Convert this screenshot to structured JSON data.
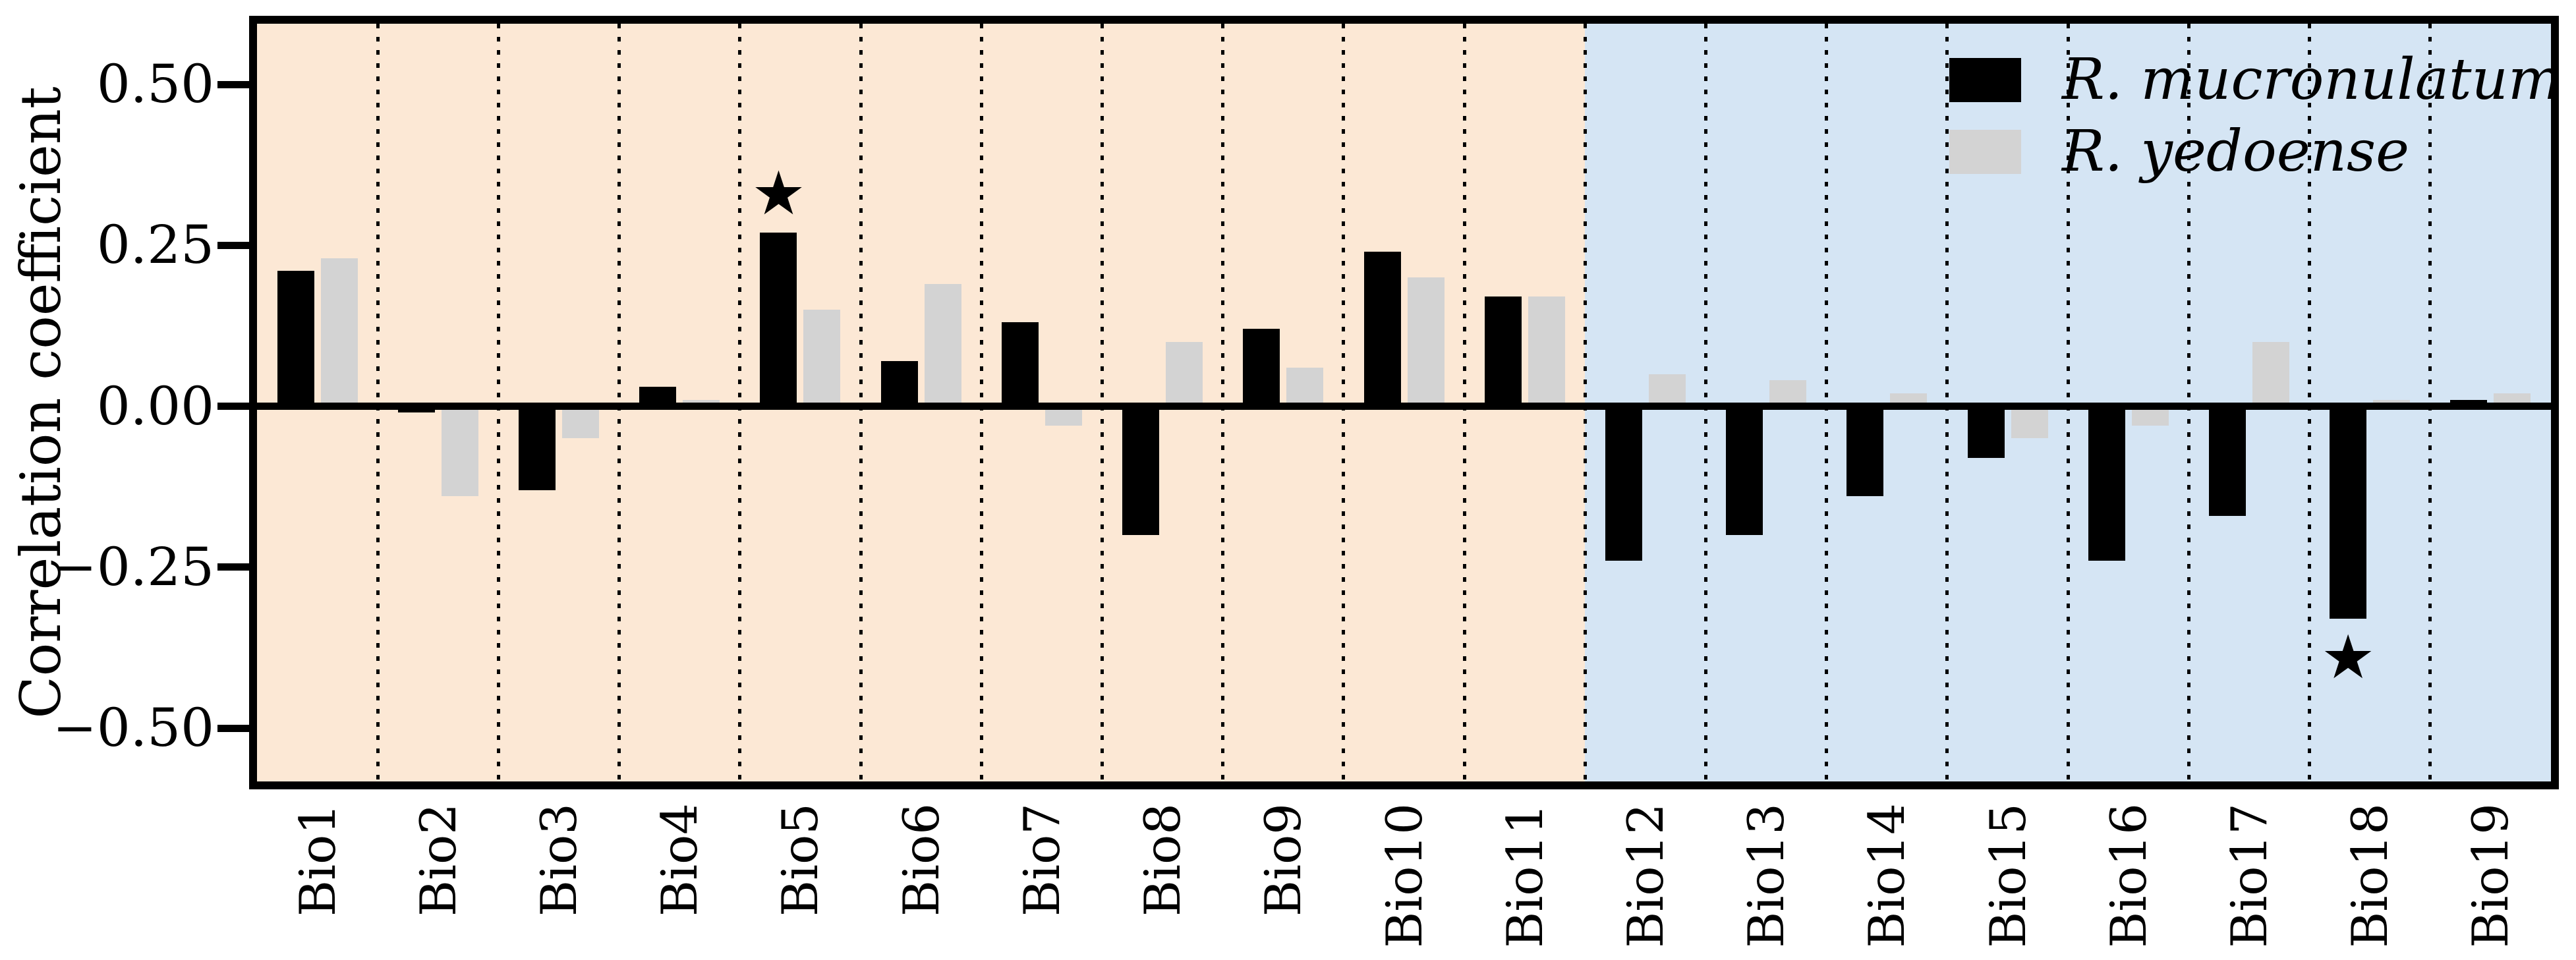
{
  "figure": {
    "ylabel": "Correlation coefficient"
  },
  "chart_data": {
    "type": "bar",
    "title": "",
    "xlabel": "",
    "ylabel": "Correlation coefficient",
    "categories": [
      "Bio1",
      "Bio2",
      "Bio3",
      "Bio4",
      "Bio5",
      "Bio6",
      "Bio7",
      "Bio8",
      "Bio9",
      "Bio10",
      "Bio11",
      "Bio12",
      "Bio13",
      "Bio14",
      "Bio15",
      "Bio16",
      "Bio17",
      "Bio18",
      "Bio19"
    ],
    "series": [
      {
        "name": "R. mucronulatum",
        "color": "#000000",
        "values": [
          0.21,
          -0.01,
          -0.13,
          0.03,
          0.27,
          0.07,
          0.13,
          -0.2,
          0.12,
          0.24,
          0.17,
          -0.24,
          -0.2,
          -0.14,
          -0.08,
          -0.24,
          -0.17,
          -0.33,
          0.01
        ]
      },
      {
        "name": "R. yedoense",
        "color": "#d3d3d3",
        "values": [
          0.23,
          -0.14,
          -0.05,
          0.01,
          0.15,
          0.19,
          -0.03,
          0.1,
          0.06,
          0.2,
          0.17,
          0.05,
          0.04,
          0.02,
          -0.05,
          -0.03,
          0.1,
          0.01,
          0.02
        ]
      }
    ],
    "ytick_labels": [
      "0.50",
      "0.25",
      "0.00",
      "−0.25",
      "−0.50"
    ],
    "ytick_values": [
      0.5,
      0.25,
      0.0,
      -0.25,
      -0.5
    ],
    "ylim": [
      -0.583,
      0.594
    ],
    "grid": "vertical dotted lines between categories",
    "legend_position": "top-right inside plot",
    "significance_stars": [
      {
        "category": "Bio5",
        "series": "R. mucronulatum",
        "symbol": "★",
        "y": 0.33
      },
      {
        "category": "Bio18",
        "series": "R. mucronulatum",
        "symbol": "★",
        "y": -0.39
      }
    ],
    "background_bands": [
      {
        "from": "Bio1",
        "to": "Bio11",
        "color": "#fce8d5"
      },
      {
        "from": "Bio12",
        "to": "Bio19",
        "color": "#d5e5f4"
      }
    ]
  },
  "legend": {
    "entries": [
      {
        "label": "R. mucronulatum",
        "swatch": "#000000"
      },
      {
        "label": "R. yedoense",
        "swatch": "#d3d3d3"
      }
    ]
  }
}
